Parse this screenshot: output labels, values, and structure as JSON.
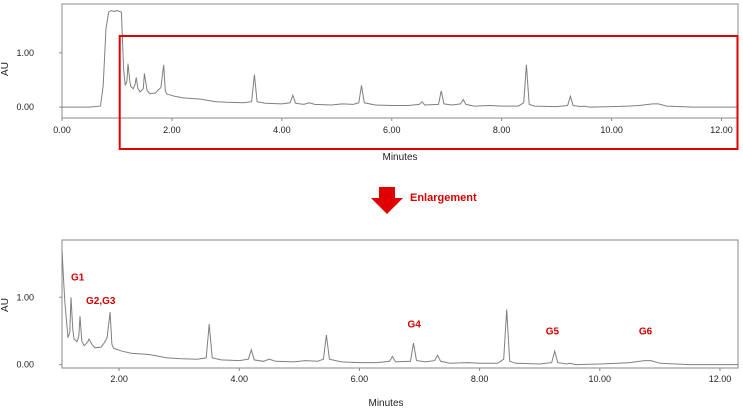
{
  "chart_data": [
    {
      "type": "line",
      "title": "",
      "xlabel": "Minutes",
      "ylabel": "AU",
      "xlim": [
        0,
        12.3
      ],
      "ylim": [
        -0.2,
        1.9
      ],
      "x_ticks": [
        "0.00",
        "2.00",
        "4.00",
        "6.00",
        "8.00",
        "10.00",
        "12.00"
      ],
      "y_ticks": [
        "0.00",
        "1.00"
      ],
      "grid": false,
      "series": [
        {
          "color": "#7f7f7f",
          "x": [
            0.0,
            0.5,
            0.7,
            0.75,
            0.8,
            0.85,
            0.9,
            0.95,
            1.0,
            1.08,
            1.12,
            1.15,
            1.18,
            1.2,
            1.23,
            1.25,
            1.3,
            1.33,
            1.35,
            1.38,
            1.42,
            1.48,
            1.5,
            1.55,
            1.6,
            1.7,
            1.75,
            1.8,
            1.85,
            1.88,
            1.91,
            1.95,
            2.05,
            2.2,
            2.5,
            2.8,
            3.0,
            3.3,
            3.45,
            3.5,
            3.55,
            3.7,
            4.0,
            4.15,
            4.2,
            4.25,
            4.4,
            4.5,
            4.6,
            4.9,
            5.1,
            5.3,
            5.4,
            5.45,
            5.5,
            5.7,
            6.0,
            6.3,
            6.5,
            6.55,
            6.6,
            6.85,
            6.9,
            6.95,
            7.1,
            7.25,
            7.3,
            7.35,
            7.5,
            7.8,
            8.0,
            8.3,
            8.4,
            8.45,
            8.5,
            8.6,
            9.0,
            9.2,
            9.25,
            9.3,
            9.45,
            9.5,
            9.6,
            10.0,
            10.3,
            10.5,
            10.75,
            10.85,
            11.0,
            11.5,
            12.0,
            12.3
          ],
          "y": [
            0.0,
            0.0,
            0.02,
            0.4,
            1.45,
            1.75,
            1.78,
            1.76,
            1.78,
            1.75,
            0.7,
            0.4,
            0.48,
            0.8,
            0.52,
            0.38,
            0.34,
            0.42,
            0.55,
            0.35,
            0.28,
            0.34,
            0.62,
            0.3,
            0.25,
            0.26,
            0.32,
            0.36,
            0.78,
            0.3,
            0.24,
            0.23,
            0.2,
            0.17,
            0.15,
            0.1,
            0.09,
            0.08,
            0.1,
            0.6,
            0.1,
            0.07,
            0.06,
            0.08,
            0.22,
            0.07,
            0.05,
            0.08,
            0.05,
            0.04,
            0.06,
            0.05,
            0.08,
            0.4,
            0.08,
            0.04,
            0.03,
            0.03,
            0.05,
            0.1,
            0.04,
            0.05,
            0.3,
            0.06,
            0.04,
            0.06,
            0.14,
            0.05,
            0.02,
            0.03,
            0.02,
            0.02,
            0.08,
            0.78,
            0.05,
            0.02,
            0.01,
            0.03,
            0.2,
            0.03,
            0.01,
            0.02,
            0.0,
            0.01,
            0.02,
            0.03,
            0.06,
            0.06,
            0.02,
            0.0,
            0.0,
            0.0
          ]
        }
      ],
      "highlight_box": {
        "x_from": 1.05,
        "x_to": 12.3,
        "color": "#e00000"
      }
    },
    {
      "type": "line",
      "title": "",
      "xlabel": "Minutes",
      "ylabel": "AU",
      "xlim": [
        1.05,
        12.3
      ],
      "ylim": [
        -0.05,
        1.85
      ],
      "x_ticks": [
        "2.00",
        "4.00",
        "6.00",
        "8.00",
        "10.00",
        "12.00"
      ],
      "y_ticks": [
        "0.00",
        "1.00"
      ],
      "grid": false,
      "annotations": [
        {
          "text": "G1",
          "x": 1.2,
          "y": 1.25
        },
        {
          "text": "G2,G3",
          "x": 1.45,
          "y": 0.9
        },
        {
          "text": "G4",
          "x": 6.8,
          "y": 0.55
        },
        {
          "text": "G5",
          "x": 9.1,
          "y": 0.45
        },
        {
          "text": "G6",
          "x": 10.65,
          "y": 0.45
        }
      ],
      "series": [
        {
          "color": "#7f7f7f",
          "x": [
            1.05,
            1.08,
            1.1,
            1.12,
            1.15,
            1.18,
            1.2,
            1.23,
            1.25,
            1.3,
            1.33,
            1.35,
            1.38,
            1.42,
            1.48,
            1.5,
            1.55,
            1.6,
            1.7,
            1.75,
            1.8,
            1.85,
            1.88,
            1.91,
            1.95,
            2.05,
            2.2,
            2.5,
            2.8,
            3.0,
            3.3,
            3.45,
            3.5,
            3.55,
            3.7,
            4.0,
            4.15,
            4.2,
            4.25,
            4.4,
            4.5,
            4.6,
            4.9,
            5.1,
            5.3,
            5.4,
            5.45,
            5.5,
            5.7,
            6.0,
            6.3,
            6.5,
            6.55,
            6.6,
            6.85,
            6.9,
            6.95,
            7.1,
            7.25,
            7.3,
            7.35,
            7.5,
            7.8,
            8.0,
            8.3,
            8.4,
            8.45,
            8.5,
            8.6,
            9.0,
            9.2,
            9.25,
            9.3,
            9.45,
            9.5,
            9.6,
            10.0,
            10.3,
            10.5,
            10.75,
            10.85,
            11.0,
            11.5,
            12.0,
            12.3
          ],
          "y": [
            1.7,
            1.2,
            0.9,
            0.7,
            0.4,
            0.48,
            1.0,
            0.52,
            0.38,
            0.34,
            0.42,
            0.72,
            0.35,
            0.28,
            0.34,
            0.38,
            0.3,
            0.25,
            0.26,
            0.32,
            0.4,
            0.78,
            0.3,
            0.24,
            0.23,
            0.2,
            0.17,
            0.15,
            0.1,
            0.09,
            0.08,
            0.1,
            0.6,
            0.1,
            0.07,
            0.06,
            0.08,
            0.22,
            0.07,
            0.05,
            0.08,
            0.05,
            0.04,
            0.06,
            0.05,
            0.08,
            0.44,
            0.08,
            0.04,
            0.03,
            0.03,
            0.05,
            0.12,
            0.04,
            0.05,
            0.32,
            0.06,
            0.04,
            0.06,
            0.14,
            0.05,
            0.02,
            0.03,
            0.02,
            0.02,
            0.08,
            0.82,
            0.05,
            0.02,
            0.01,
            0.03,
            0.2,
            0.03,
            0.01,
            0.02,
            0.0,
            0.01,
            0.02,
            0.03,
            0.06,
            0.06,
            0.02,
            0.0,
            0.0,
            0.0
          ]
        }
      ]
    }
  ],
  "transition": {
    "arrow_color": "#e00000",
    "label": "Enlargement"
  }
}
